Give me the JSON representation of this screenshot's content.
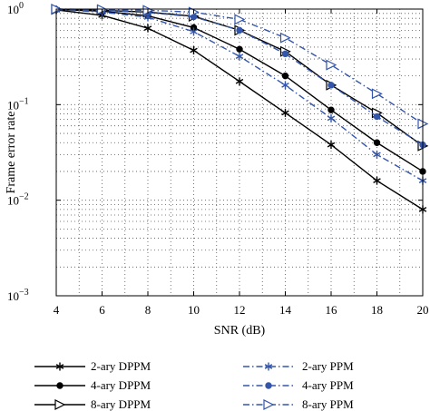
{
  "chart_data": {
    "type": "line",
    "title": "",
    "xlabel": "SNR (dB)",
    "ylabel": "Frame error rate",
    "xlim": [
      4,
      20
    ],
    "ylim": [
      0.001,
      1
    ],
    "yscale": "log",
    "grid": true,
    "x_ticks": [
      "4",
      "6",
      "8",
      "10",
      "12",
      "14",
      "16",
      "18",
      "20"
    ],
    "y_ticks": [
      {
        "base": "10",
        "exp": "0"
      },
      {
        "base": "10",
        "exp": "−1"
      },
      {
        "base": "10",
        "exp": "−2"
      },
      {
        "base": "10",
        "exp": "−3"
      }
    ],
    "legend_position": "bottom",
    "series": [
      {
        "name": "2-ary DPPM",
        "color": "#000000",
        "marker": "star",
        "dash": "solid",
        "x": [
          4,
          6,
          8,
          10,
          12,
          14,
          16,
          18,
          20
        ],
        "y": [
          0.98,
          0.86,
          0.63,
          0.37,
          0.175,
          0.082,
          0.038,
          0.016,
          0.008
        ]
      },
      {
        "name": "4-ary DPPM",
        "color": "#000000",
        "marker": "dot",
        "dash": "solid",
        "x": [
          4,
          6,
          8,
          10,
          12,
          14,
          16,
          18,
          20
        ],
        "y": [
          0.99,
          0.95,
          0.85,
          0.64,
          0.38,
          0.2,
          0.088,
          0.04,
          0.02
        ]
      },
      {
        "name": "8-ary DPPM",
        "color": "#000000",
        "marker": "triangle",
        "dash": "solid",
        "x": [
          4,
          6,
          8,
          10,
          12,
          14,
          16,
          18,
          20
        ],
        "y": [
          0.99,
          0.97,
          0.93,
          0.84,
          0.6,
          0.36,
          0.16,
          0.082,
          0.037
        ]
      },
      {
        "name": "2-ary PPM",
        "color": "#3355aa",
        "marker": "star",
        "dash": "dashdot",
        "x": [
          4,
          6,
          8,
          10,
          12,
          14,
          16,
          18,
          20
        ],
        "y": [
          0.99,
          0.93,
          0.82,
          0.58,
          0.32,
          0.16,
          0.072,
          0.03,
          0.016
        ]
      },
      {
        "name": "4-ary PPM",
        "color": "#3355aa",
        "marker": "dot",
        "dash": "dashdot",
        "x": [
          4,
          6,
          8,
          10,
          12,
          14,
          16,
          18,
          20
        ],
        "y": [
          0.99,
          0.97,
          0.92,
          0.83,
          0.6,
          0.34,
          0.16,
          0.075,
          0.038
        ]
      },
      {
        "name": "8-ary PPM",
        "color": "#3355aa",
        "marker": "triangle",
        "dash": "dashdot",
        "x": [
          4,
          6,
          8,
          10,
          12,
          14,
          16,
          18,
          20
        ],
        "y": [
          1.0,
          0.99,
          0.97,
          0.93,
          0.78,
          0.5,
          0.26,
          0.13,
          0.063
        ]
      }
    ]
  }
}
